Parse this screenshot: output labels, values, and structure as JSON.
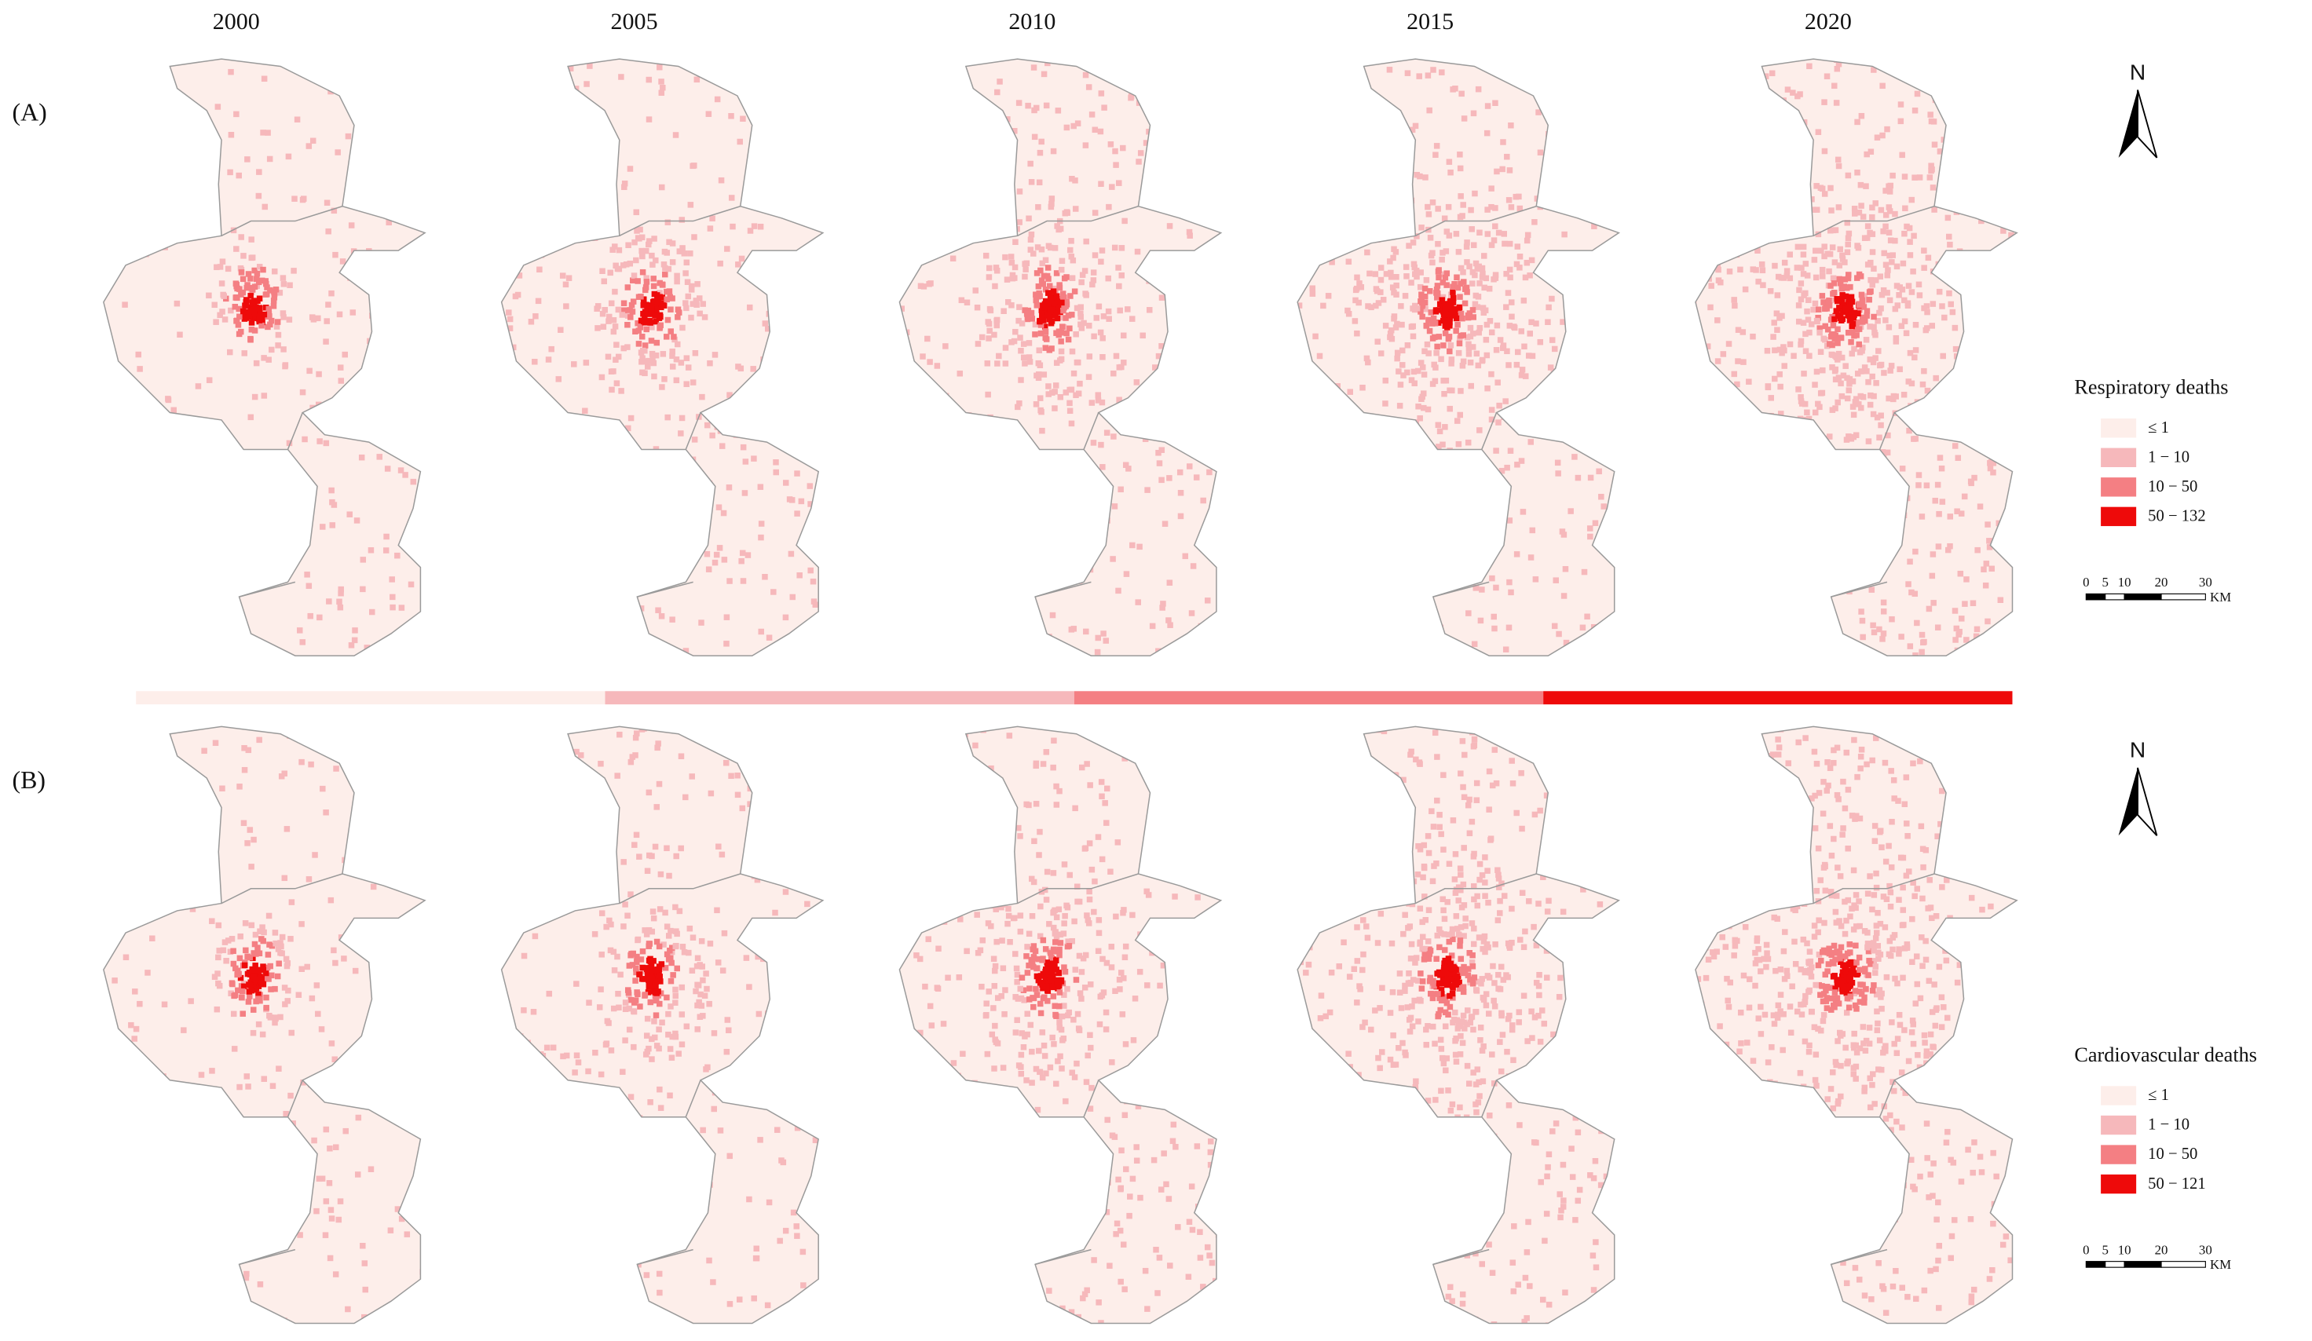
{
  "years": [
    "2000",
    "2005",
    "2010",
    "2015",
    "2020"
  ],
  "north": "N",
  "scale_labels": [
    "0",
    "5",
    "10",
    "20",
    "30"
  ],
  "scale_unit": "KM",
  "panels": [
    {
      "label": "(A)",
      "legend_title": "Respiratory deaths",
      "classes": [
        {
          "label": "≤ 1",
          "color": "#fdeeea"
        },
        {
          "label": "1 − 10",
          "color": "#f6b8bb"
        },
        {
          "label": "10 − 50",
          "color": "#f47f83"
        },
        {
          "label": "50 − 132",
          "color": "#ee0a0a"
        }
      ]
    },
    {
      "label": "(B)",
      "legend_title": "Cardiovascular deaths",
      "classes": [
        {
          "label": "≤ 1",
          "color": "#fdeeea"
        },
        {
          "label": "1 − 10",
          "color": "#f6b8bb"
        },
        {
          "label": "10 − 50",
          "color": "#f47f83"
        },
        {
          "label": "50 − 121",
          "color": "#ee0a0a"
        }
      ]
    }
  ]
}
